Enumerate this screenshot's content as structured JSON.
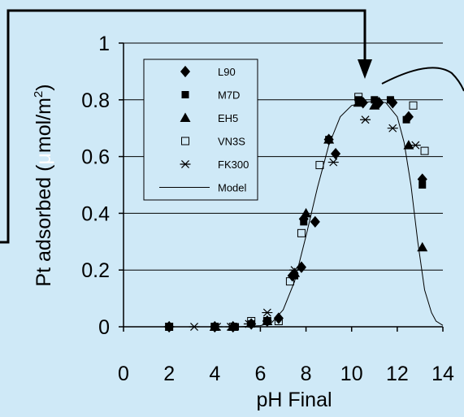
{
  "chart_data": {
    "type": "scatter",
    "title": "",
    "xlabel": "pH Final",
    "ylabel_main": "Pt adsorbed (",
    "ylabel_mu": "μ",
    "ylabel_unit": "mol/m",
    "ylabel_sup": "2",
    "ylabel_close": ")",
    "xlim": [
      0,
      14
    ],
    "ylim": [
      0,
      1
    ],
    "x_ticks": [
      0,
      2,
      4,
      6,
      8,
      10,
      12,
      14
    ],
    "y_ticks": [
      0,
      0.2,
      0.4,
      0.6,
      0.8,
      1
    ],
    "y_tick_labels": [
      "0",
      "0.2",
      "0.4",
      "0.6",
      "0.8",
      "1"
    ],
    "grid": "horizontal",
    "legend_position": "top-left",
    "series": [
      {
        "name": "L90",
        "marker": "diamond",
        "points": [
          [
            2.0,
            0.0
          ],
          [
            4.0,
            0.0
          ],
          [
            4.8,
            0.0
          ],
          [
            5.6,
            0.01
          ],
          [
            6.3,
            0.02
          ],
          [
            6.8,
            0.03
          ],
          [
            7.4,
            0.18
          ],
          [
            7.8,
            0.21
          ],
          [
            7.9,
            0.38
          ],
          [
            8.4,
            0.37
          ],
          [
            9.0,
            0.66
          ],
          [
            9.3,
            0.61
          ],
          [
            10.5,
            0.79
          ],
          [
            11.2,
            0.79
          ],
          [
            11.8,
            0.79
          ],
          [
            12.5,
            0.74
          ],
          [
            13.1,
            0.52
          ]
        ]
      },
      {
        "name": "M7D",
        "marker": "square",
        "points": [
          [
            2.0,
            0.0
          ],
          [
            4.0,
            0.0
          ],
          [
            4.9,
            0.0
          ],
          [
            5.6,
            0.01
          ],
          [
            6.3,
            0.02
          ],
          [
            7.5,
            0.18
          ],
          [
            7.9,
            0.37
          ],
          [
            9.0,
            0.66
          ],
          [
            10.3,
            0.8
          ],
          [
            11.0,
            0.8
          ],
          [
            11.7,
            0.8
          ],
          [
            12.4,
            0.73
          ],
          [
            13.1,
            0.5
          ]
        ]
      },
      {
        "name": "EH5",
        "marker": "triangle",
        "points": [
          [
            4.0,
            0.0
          ],
          [
            4.8,
            0.0
          ],
          [
            6.3,
            0.02
          ],
          [
            7.5,
            0.19
          ],
          [
            8.0,
            0.4
          ],
          [
            9.0,
            0.66
          ],
          [
            10.3,
            0.79
          ],
          [
            11.0,
            0.78
          ],
          [
            12.5,
            0.64
          ],
          [
            13.1,
            0.28
          ]
        ]
      },
      {
        "name": "VN3S",
        "marker": "open-square",
        "points": [
          [
            2.0,
            0.0
          ],
          [
            4.0,
            0.0
          ],
          [
            4.8,
            0.0
          ],
          [
            5.6,
            0.02
          ],
          [
            6.3,
            0.02
          ],
          [
            6.8,
            0.02
          ],
          [
            7.3,
            0.16
          ],
          [
            7.8,
            0.33
          ],
          [
            8.6,
            0.57
          ],
          [
            10.3,
            0.81
          ],
          [
            12.7,
            0.78
          ],
          [
            13.2,
            0.62
          ]
        ]
      },
      {
        "name": "FK300",
        "marker": "star",
        "points": [
          [
            2.0,
            0.0
          ],
          [
            3.1,
            0.0
          ],
          [
            4.1,
            0.0
          ],
          [
            4.7,
            0.0
          ],
          [
            5.5,
            0.01
          ],
          [
            6.3,
            0.05
          ],
          [
            7.5,
            0.2
          ],
          [
            9.2,
            0.58
          ],
          [
            10.6,
            0.73
          ],
          [
            11.8,
            0.7
          ],
          [
            12.8,
            0.64
          ]
        ]
      },
      {
        "name": "Model",
        "marker": "line",
        "points": [
          [
            2,
            0.0
          ],
          [
            5,
            0.0
          ],
          [
            6,
            0.004
          ],
          [
            6.5,
            0.015
          ],
          [
            7,
            0.06
          ],
          [
            7.5,
            0.16
          ],
          [
            8,
            0.32
          ],
          [
            8.5,
            0.49
          ],
          [
            9,
            0.64
          ],
          [
            9.5,
            0.74
          ],
          [
            10,
            0.78
          ],
          [
            10.5,
            0.79
          ],
          [
            11,
            0.795
          ],
          [
            11.5,
            0.79
          ],
          [
            12,
            0.74
          ],
          [
            12.3,
            0.65
          ],
          [
            12.6,
            0.5
          ],
          [
            12.9,
            0.3
          ],
          [
            13.2,
            0.13
          ],
          [
            13.5,
            0.05
          ],
          [
            13.7,
            0.02
          ],
          [
            14,
            0.005
          ]
        ]
      }
    ]
  }
}
